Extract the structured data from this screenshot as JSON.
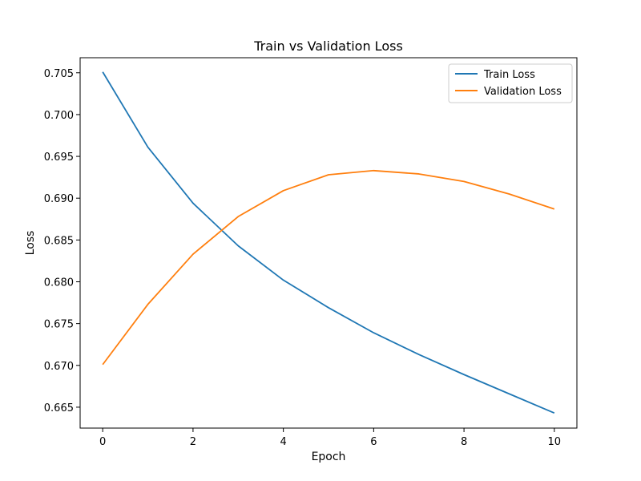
{
  "chart_data": {
    "type": "line",
    "title": "Train vs Validation Loss",
    "xlabel": "Epoch",
    "ylabel": "Loss",
    "x": [
      0,
      1,
      2,
      3,
      4,
      5,
      6,
      7,
      8,
      9,
      10
    ],
    "xlim": [
      -0.5,
      10.5
    ],
    "ylim": [
      0.6625,
      0.7068
    ],
    "xticks": [
      0,
      2,
      4,
      6,
      8,
      10
    ],
    "yticks": [
      0.665,
      0.67,
      0.675,
      0.68,
      0.685,
      0.69,
      0.695,
      0.7,
      0.705
    ],
    "ytick_labels": [
      "0.665",
      "0.670",
      "0.675",
      "0.680",
      "0.685",
      "0.690",
      "0.695",
      "0.700",
      "0.705"
    ],
    "grid": false,
    "legend_position": "top-right",
    "series": [
      {
        "name": "Train Loss",
        "color": "#1f77b4",
        "values": [
          0.7051,
          0.6961,
          0.6894,
          0.6843,
          0.6802,
          0.6769,
          0.6739,
          0.6713,
          0.6689,
          0.6666,
          0.6643
        ]
      },
      {
        "name": "Validation Loss",
        "color": "#ff7f0e",
        "values": [
          0.6701,
          0.6773,
          0.6833,
          0.6878,
          0.6909,
          0.6928,
          0.6933,
          0.6929,
          0.692,
          0.6905,
          0.6887
        ]
      }
    ]
  }
}
